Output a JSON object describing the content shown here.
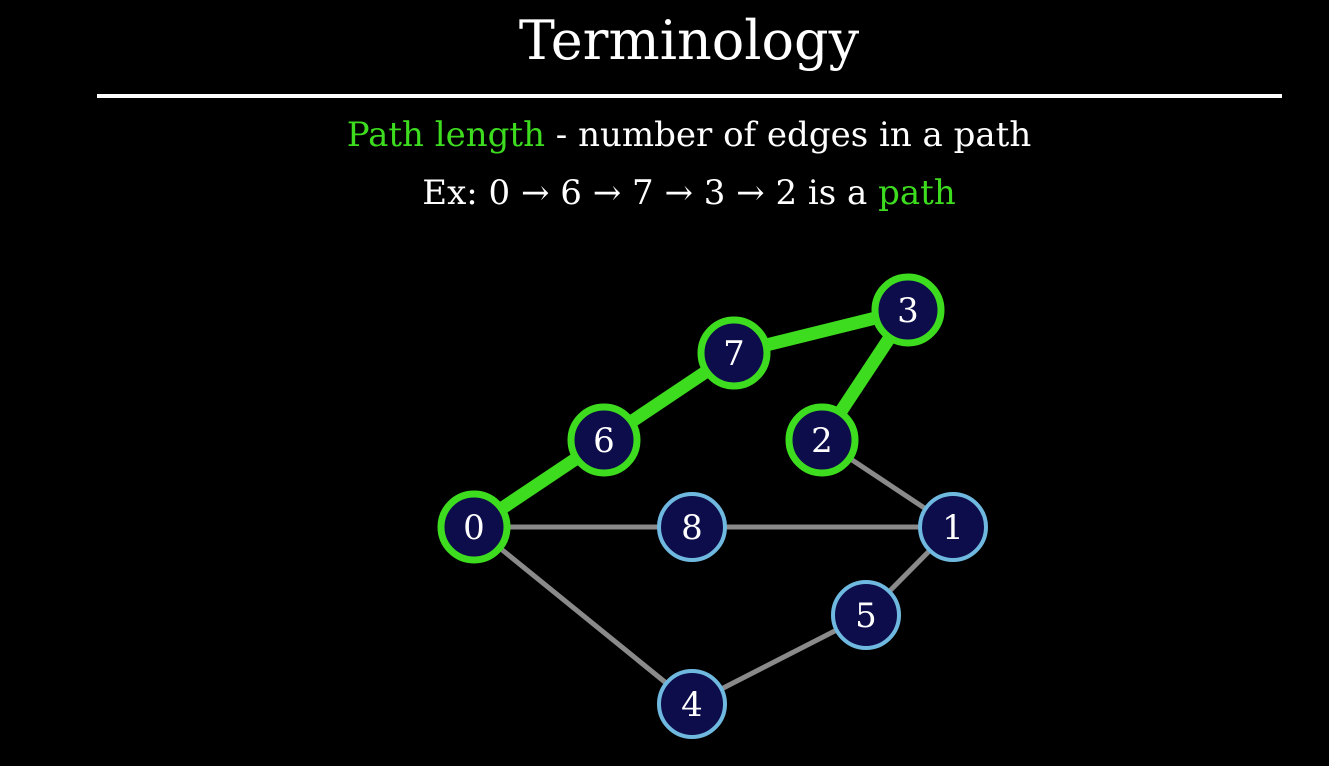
{
  "title": "Terminology",
  "definition": {
    "term": "Path length",
    "text": " - number of edges in a path"
  },
  "example": {
    "prefix": "Ex: ",
    "sequence": "0 → 6 → 7 → 3 → 2",
    "middle": " is a ",
    "highlight": "path"
  },
  "colors": {
    "background": "#000000",
    "text": "#ffffff",
    "highlight": "#3ddc1f",
    "node_fill": "#0c0d4a",
    "node_border": "#6fb8df",
    "edge": "#8a8a8a"
  },
  "graph": {
    "nodes": [
      {
        "id": "0",
        "label": "0",
        "highlighted": true
      },
      {
        "id": "1",
        "label": "1",
        "highlighted": false
      },
      {
        "id": "2",
        "label": "2",
        "highlighted": true
      },
      {
        "id": "3",
        "label": "3",
        "highlighted": true
      },
      {
        "id": "4",
        "label": "4",
        "highlighted": false
      },
      {
        "id": "5",
        "label": "5",
        "highlighted": false
      },
      {
        "id": "6",
        "label": "6",
        "highlighted": true
      },
      {
        "id": "7",
        "label": "7",
        "highlighted": true
      },
      {
        "id": "8",
        "label": "8",
        "highlighted": false
      }
    ],
    "edges": [
      {
        "from": "0",
        "to": "8",
        "highlighted": false
      },
      {
        "from": "8",
        "to": "1",
        "highlighted": false
      },
      {
        "from": "0",
        "to": "4",
        "highlighted": false
      },
      {
        "from": "4",
        "to": "5",
        "highlighted": false
      },
      {
        "from": "5",
        "to": "1",
        "highlighted": false
      },
      {
        "from": "2",
        "to": "1",
        "highlighted": false
      },
      {
        "from": "0",
        "to": "6",
        "highlighted": true
      },
      {
        "from": "6",
        "to": "7",
        "highlighted": true
      },
      {
        "from": "7",
        "to": "3",
        "highlighted": true
      },
      {
        "from": "3",
        "to": "2",
        "highlighted": true
      }
    ]
  }
}
